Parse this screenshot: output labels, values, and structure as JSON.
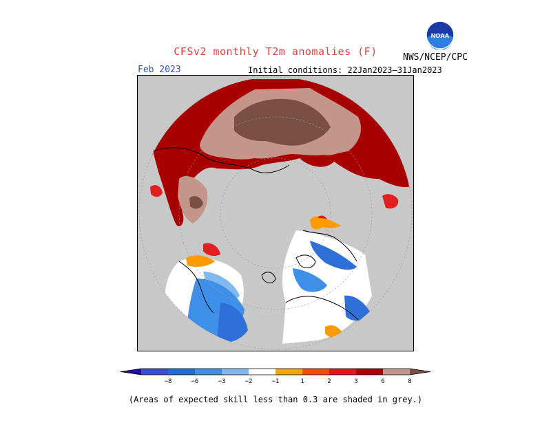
{
  "title": "CFSv2 monthly T2m anomalies (F)",
  "agency": "NWS/NCEP/CPC",
  "logo_text": "NOAA",
  "month": "Feb 2023",
  "initial_conditions": "Initial conditions: 22Jan2023–31Jan2023",
  "footnote": "(Areas of expected skill less than 0.3 are shaded in grey.)",
  "colorbar": {
    "labels": [
      "−8",
      "−6",
      "−3",
      "−2",
      "−1",
      "1",
      "2",
      "3",
      "6",
      "8"
    ],
    "colors": [
      "#2010a0",
      "#3a50c8",
      "#1e6fd0",
      "#3d8fe8",
      "#7fb8f0",
      "#ffffff",
      "#f5a500",
      "#ff4a00",
      "#e01818",
      "#aa0000",
      "#c4958a",
      "#7a5045"
    ]
  },
  "map_colors": {
    "skill_grey": "#c8c8c8",
    "dark_red": "#a80000",
    "red": "#e02020",
    "orange": "#ff9a00",
    "pink_brown": "#c4958a",
    "dark_brown": "#7a5045",
    "light_blue": "#80b8f0",
    "blue": "#3d8fe8",
    "mid_blue": "#2f6fd8",
    "white": "#ffffff"
  }
}
